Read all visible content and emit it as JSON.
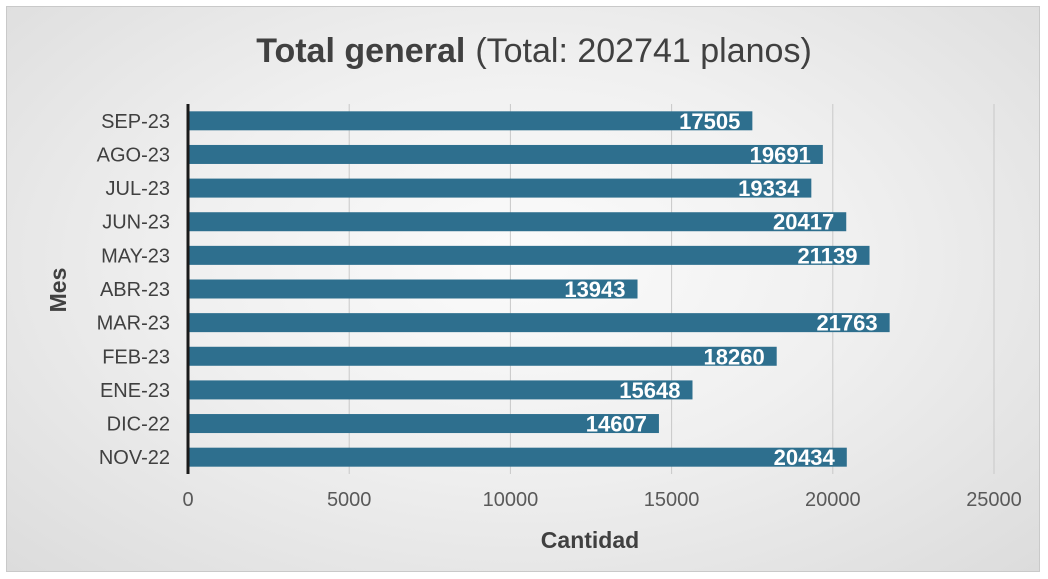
{
  "chart_data": {
    "type": "bar",
    "orientation": "horizontal",
    "title": "Total general",
    "subtitle": "(Total: 202741 planos)",
    "xlabel": "Cantidad",
    "ylabel": "Mes",
    "xlim": [
      0,
      25000
    ],
    "x_ticks": [
      "0",
      "5000",
      "10000",
      "15000",
      "20000",
      "25000"
    ],
    "grid": true,
    "legend": "none",
    "bar_color": "#2e6f8e",
    "categories": [
      "SEP-23",
      "AGO-23",
      "JUL-23",
      "JUN-23",
      "MAY-23",
      "ABR-23",
      "MAR-23",
      "FEB-23",
      "ENE-23",
      "DIC-22",
      "NOV-22"
    ],
    "values": [
      17505,
      19691,
      19334,
      20417,
      21139,
      13943,
      21763,
      18260,
      15648,
      14607,
      20434
    ]
  }
}
